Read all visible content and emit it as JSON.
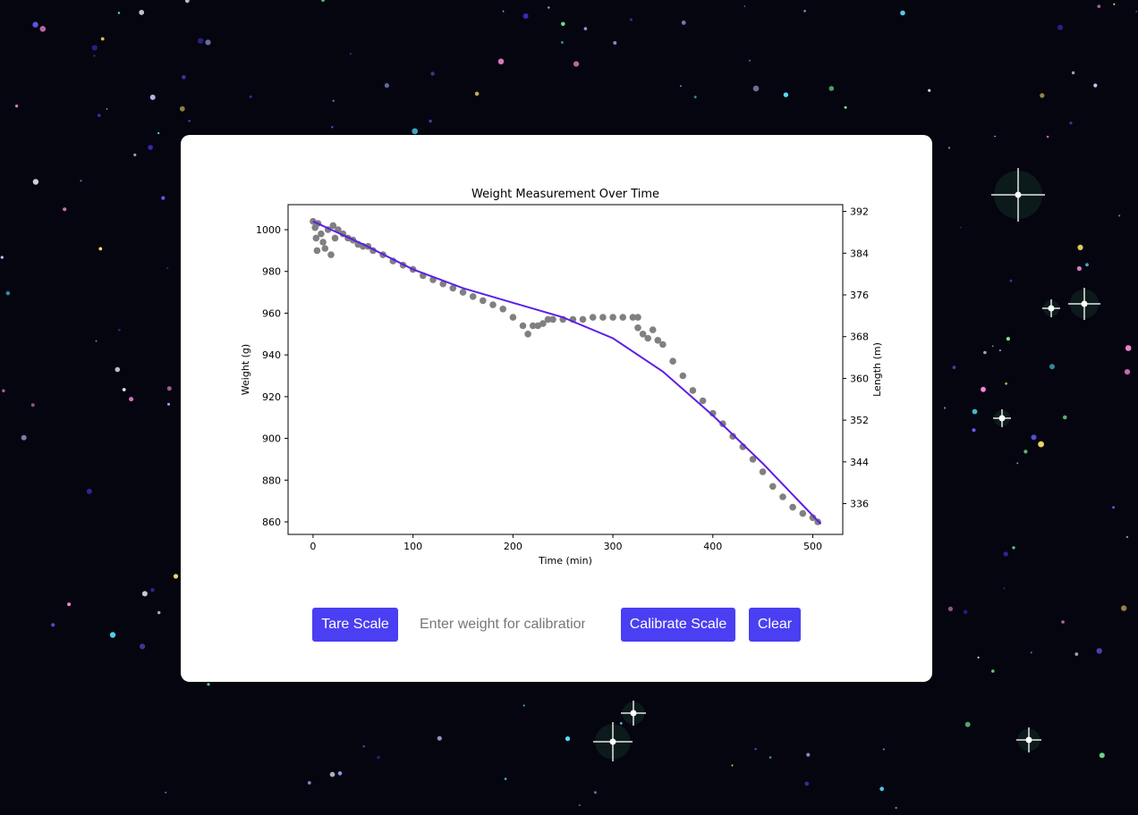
{
  "controls": {
    "tare_label": "Tare Scale",
    "calibration_placeholder": "Enter weight for calibration",
    "calibration_value": "",
    "calibrate_label": "Calibrate Scale",
    "clear_label": "Clear"
  },
  "colors": {
    "button": "#4a3ff2",
    "scatter": "#808080",
    "fit_line": "#5b1ee6",
    "background": "#05050f",
    "card": "#ffffff"
  },
  "chart_data": {
    "type": "scatter",
    "title": "Weight Measurement Over Time",
    "xlabel": "Time (min)",
    "ylabel": "Weight (g)",
    "y2label": "Length (m)",
    "xlim": [
      -25,
      530
    ],
    "ylim": [
      854,
      1012
    ],
    "y2lim": [
      330.1,
      393.3
    ],
    "xticks": [
      0,
      100,
      200,
      300,
      400,
      500
    ],
    "yticks": [
      860,
      880,
      900,
      920,
      940,
      960,
      980,
      1000
    ],
    "y2ticks": [
      336,
      344,
      352,
      360,
      368,
      376,
      384,
      392
    ],
    "grid": false,
    "series": [
      {
        "kind": "scatter",
        "color": "#808080",
        "points": [
          [
            0,
            1004
          ],
          [
            2,
            1001
          ],
          [
            3,
            996
          ],
          [
            4,
            990
          ],
          [
            5,
            1003
          ],
          [
            8,
            998
          ],
          [
            10,
            994
          ],
          [
            12,
            991
          ],
          [
            15,
            1000
          ],
          [
            18,
            988
          ],
          [
            20,
            1002
          ],
          [
            22,
            996
          ],
          [
            25,
            1000
          ],
          [
            30,
            998
          ],
          [
            35,
            996
          ],
          [
            40,
            995
          ],
          [
            45,
            993
          ],
          [
            50,
            992
          ],
          [
            55,
            992
          ],
          [
            60,
            990
          ],
          [
            70,
            988
          ],
          [
            80,
            985
          ],
          [
            90,
            983
          ],
          [
            100,
            981
          ],
          [
            110,
            978
          ],
          [
            120,
            976
          ],
          [
            130,
            974
          ],
          [
            140,
            972
          ],
          [
            150,
            970
          ],
          [
            160,
            968
          ],
          [
            170,
            966
          ],
          [
            180,
            964
          ],
          [
            190,
            962
          ],
          [
            200,
            958
          ],
          [
            210,
            954
          ],
          [
            215,
            950
          ],
          [
            220,
            954
          ],
          [
            225,
            954
          ],
          [
            230,
            955
          ],
          [
            235,
            957
          ],
          [
            240,
            957
          ],
          [
            250,
            957
          ],
          [
            260,
            957
          ],
          [
            270,
            957
          ],
          [
            280,
            958
          ],
          [
            290,
            958
          ],
          [
            300,
            958
          ],
          [
            310,
            958
          ],
          [
            320,
            958
          ],
          [
            325,
            958
          ],
          [
            325,
            953
          ],
          [
            330,
            950
          ],
          [
            335,
            948
          ],
          [
            340,
            952
          ],
          [
            345,
            947
          ],
          [
            350,
            945
          ],
          [
            360,
            937
          ],
          [
            370,
            930
          ],
          [
            380,
            923
          ],
          [
            390,
            918
          ],
          [
            400,
            912
          ],
          [
            410,
            907
          ],
          [
            420,
            901
          ],
          [
            430,
            896
          ],
          [
            440,
            890
          ],
          [
            450,
            884
          ],
          [
            460,
            877
          ],
          [
            470,
            872
          ],
          [
            480,
            867
          ],
          [
            490,
            864
          ],
          [
            500,
            862
          ],
          [
            505,
            860
          ]
        ]
      },
      {
        "kind": "line",
        "color": "#5b1ee6",
        "points": [
          [
            0,
            1004
          ],
          [
            50,
            993
          ],
          [
            100,
            981
          ],
          [
            150,
            972
          ],
          [
            200,
            965
          ],
          [
            250,
            958
          ],
          [
            300,
            948
          ],
          [
            350,
            932
          ],
          [
            400,
            911
          ],
          [
            450,
            888
          ],
          [
            508,
            859
          ]
        ]
      }
    ]
  }
}
